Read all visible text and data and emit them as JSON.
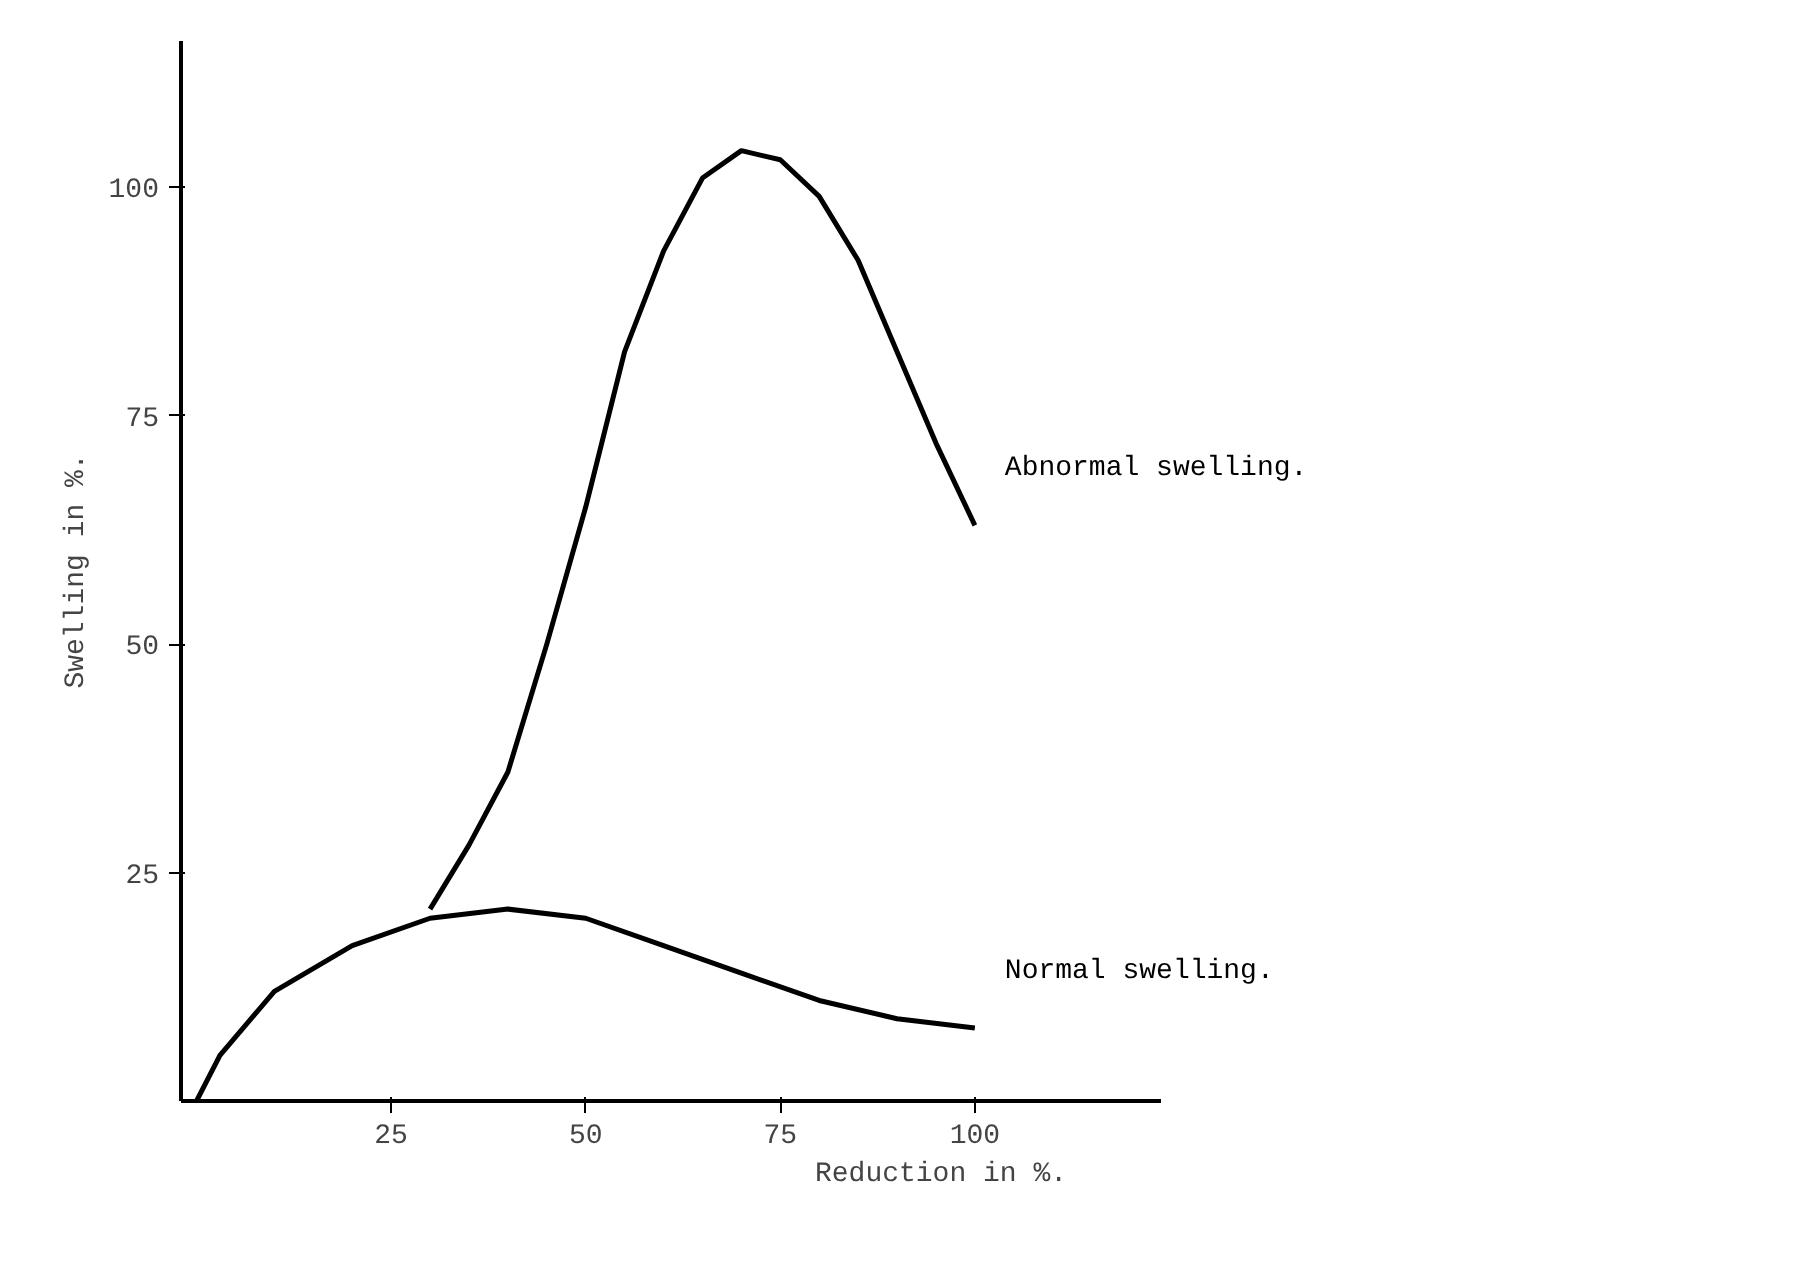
{
  "chart_data": {
    "type": "line",
    "xlabel": "Reduction in %.",
    "ylabel": "Swelling in %.",
    "xlim": [
      -2,
      124
    ],
    "ylim": [
      0,
      116
    ],
    "xticks": [
      25,
      50,
      75,
      100
    ],
    "yticks": [
      25,
      50,
      75,
      100
    ],
    "grid": false,
    "legend": false,
    "marker": "none",
    "line_style": "solid",
    "series": [
      {
        "name": "Abnormal swelling.",
        "color": "#000000",
        "x": [
          30,
          35,
          40,
          45,
          50,
          55,
          60,
          65,
          70,
          75,
          80,
          85,
          90,
          95,
          100
        ],
        "values": [
          21,
          28,
          36,
          50,
          65,
          82,
          93,
          101,
          104,
          103,
          99,
          92,
          82,
          72,
          63
        ]
      },
      {
        "name": "Normal swelling.",
        "color": "#000000",
        "x": [
          0,
          3,
          10,
          20,
          30,
          40,
          50,
          60,
          70,
          80,
          90,
          100
        ],
        "values": [
          0,
          5,
          12,
          17,
          20,
          21,
          20,
          17,
          14,
          11,
          9,
          8
        ]
      }
    ]
  }
}
